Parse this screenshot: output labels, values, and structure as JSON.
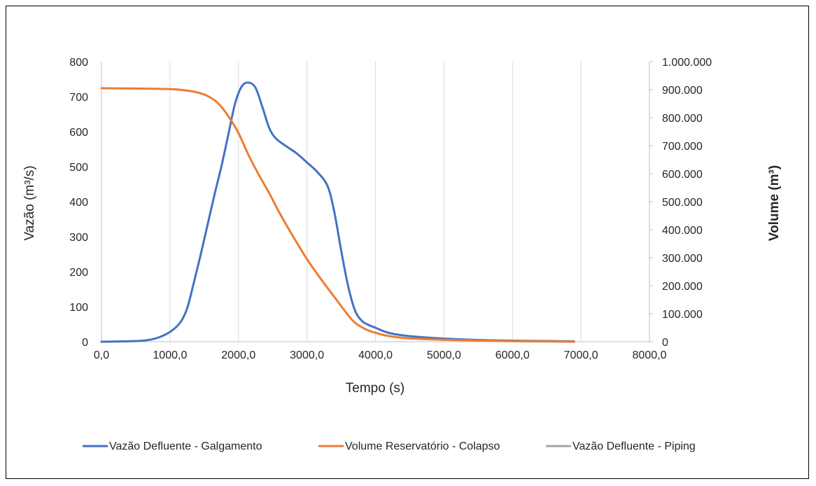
{
  "chart_data": {
    "type": "line",
    "xlabel": "Tempo (s)",
    "ylabel_left": "Vazão (m³/s)",
    "ylabel_right": "Volume (m³)",
    "xlim": [
      0,
      8000
    ],
    "ylim_left": [
      0,
      800
    ],
    "ylim_right": [
      0,
      1000000
    ],
    "x_ticks": [
      0,
      1000,
      2000,
      3000,
      4000,
      5000,
      6000,
      7000,
      8000
    ],
    "x_tick_labels": [
      "0,0",
      "1000,0",
      "2000,0",
      "3000,0",
      "4000,0",
      "5000,0",
      "6000,0",
      "7000,0",
      "8000,0"
    ],
    "y_left_ticks": [
      0,
      100,
      200,
      300,
      400,
      500,
      600,
      700,
      800
    ],
    "y_left_tick_labels": [
      "0",
      "100",
      "200",
      "300",
      "400",
      "500",
      "600",
      "700",
      "800"
    ],
    "y_right_ticks": [
      0,
      100000,
      200000,
      300000,
      400000,
      500000,
      600000,
      700000,
      800000,
      900000,
      1000000
    ],
    "y_right_tick_labels": [
      "0",
      "100.000",
      "200.000",
      "300.000",
      "400.000",
      "500.000",
      "600.000",
      "700.000",
      "800.000",
      "900.000",
      "1.000.000"
    ],
    "grid": "vertical",
    "legend_position": "bottom",
    "series": [
      {
        "name": "Vazão Defluente - Galgamento",
        "axis": "left",
        "color": "#4472c4",
        "x": [
          0,
          300,
          600,
          800,
          1000,
          1150,
          1250,
          1350,
          1450,
          1550,
          1650,
          1750,
          1850,
          1950,
          2050,
          2150,
          2250,
          2350,
          2450,
          2550,
          2700,
          2850,
          3000,
          3150,
          3300,
          3400,
          3500,
          3600,
          3700,
          3800,
          3900,
          4000,
          4200,
          4500,
          5000,
          5500,
          6000,
          6500,
          6900
        ],
        "values": [
          0,
          1,
          3,
          10,
          28,
          55,
          95,
          170,
          250,
          335,
          420,
          500,
          590,
          680,
          730,
          740,
          725,
          670,
          610,
          580,
          558,
          538,
          512,
          485,
          445,
          370,
          260,
          160,
          90,
          60,
          48,
          40,
          25,
          16,
          9,
          5,
          3,
          2,
          1
        ]
      },
      {
        "name": "Volume Reservatório - Colapso",
        "axis": "right",
        "color": "#ed7d31",
        "x": [
          0,
          500,
          1000,
          1200,
          1400,
          1550,
          1700,
          1850,
          2000,
          2150,
          2300,
          2450,
          2600,
          2800,
          3000,
          3200,
          3400,
          3600,
          3700,
          3800,
          3900,
          4000,
          4200,
          4500,
          5000,
          5500,
          6000,
          6500,
          6900
        ],
        "values": [
          905000,
          904000,
          902000,
          898000,
          890000,
          877000,
          852000,
          806000,
          745000,
          665000,
          595000,
          530000,
          460000,
          375000,
          295000,
          225000,
          160000,
          95000,
          68000,
          52000,
          40000,
          32000,
          20000,
          12000,
          7000,
          4000,
          2000,
          1000,
          0
        ]
      },
      {
        "name": "Vazão Defluente - Piping",
        "axis": "left",
        "color": "#a5a5a5",
        "x": [],
        "values": []
      }
    ]
  }
}
